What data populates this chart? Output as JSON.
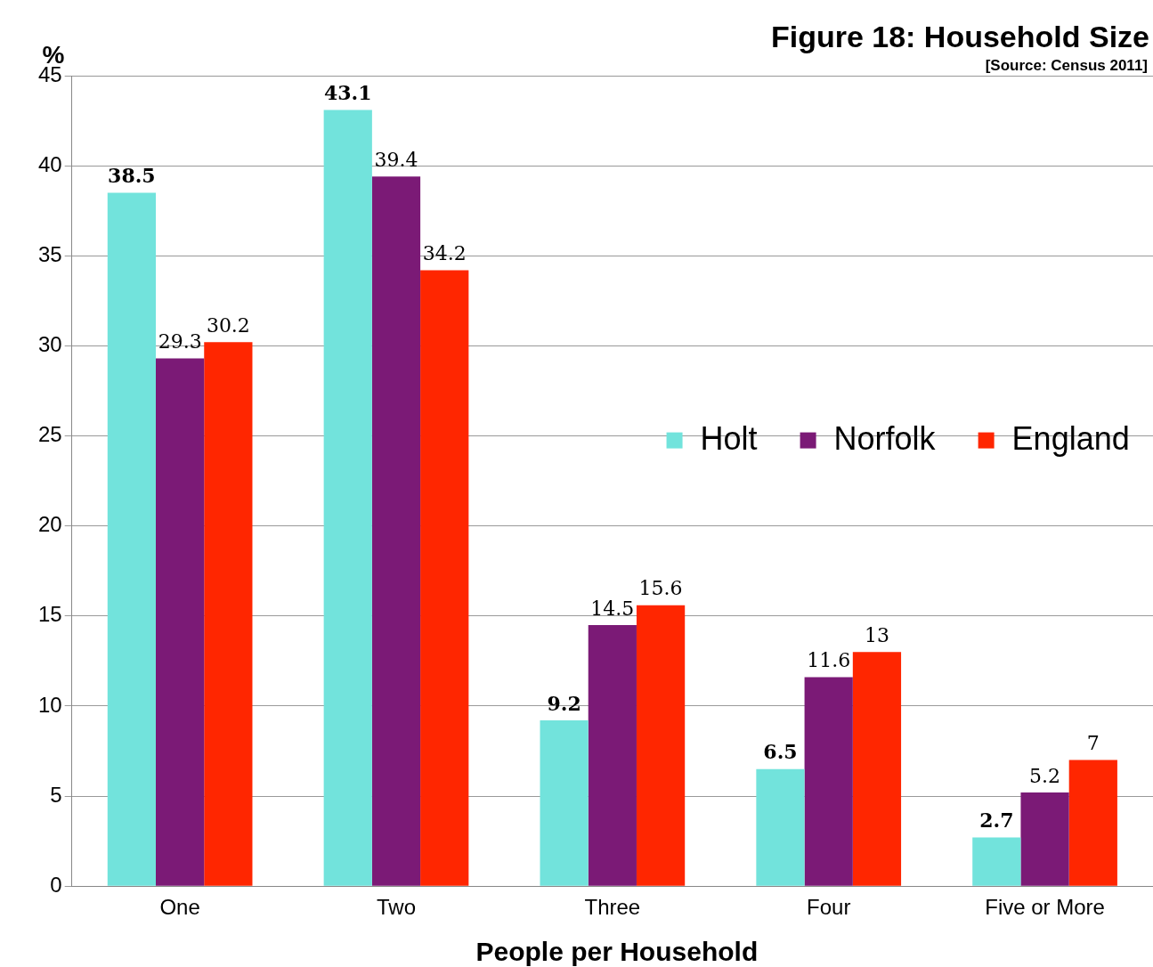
{
  "chart_data": {
    "type": "bar",
    "title": "Figure 18: Household Size",
    "annotations": [
      "[Source: Census 2011]"
    ],
    "ylabel": "%",
    "xlabel": "People per Household",
    "categories": [
      "One",
      "Two",
      "Three",
      "Four",
      "Five or More"
    ],
    "series": [
      {
        "name": "Holt",
        "color": "#72e3dc",
        "values": [
          38.5,
          43.1,
          9.2,
          6.5,
          2.7
        ]
      },
      {
        "name": "Norfolk",
        "color": "#7b1a76",
        "values": [
          29.3,
          39.4,
          14.5,
          11.6,
          5.2
        ]
      },
      {
        "name": "England",
        "color": "#ff2600",
        "values": [
          30.2,
          34.2,
          15.6,
          13,
          7
        ]
      }
    ],
    "ylim": [
      0,
      45
    ],
    "yticks": [
      0,
      5,
      10,
      15,
      20,
      25,
      30,
      35,
      40,
      45
    ],
    "grid": "y",
    "legend": "right",
    "data_labels": true
  }
}
